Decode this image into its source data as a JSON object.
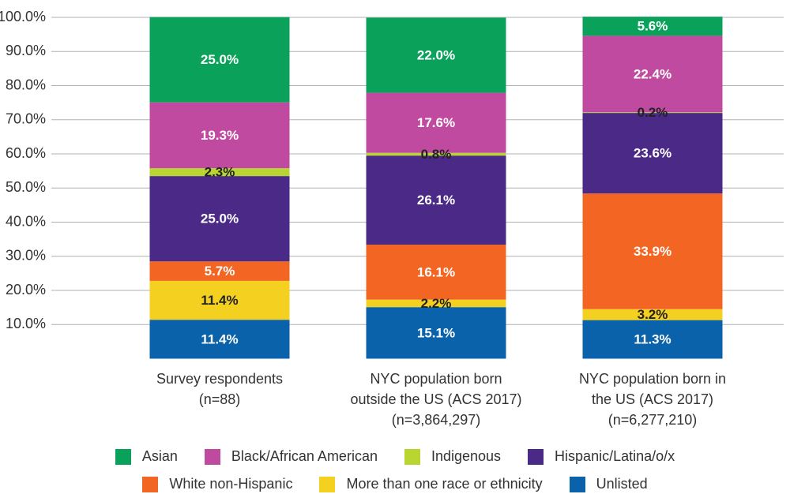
{
  "chart_data": {
    "type": "stacked_bar",
    "categories": [
      "Survey respondents\n(n=88)",
      "NYC population born\noutside the US (ACS 2017)\n(n=3,864,297)",
      "NYC population born in\nthe US (ACS 2017)\n(n=6,277,210)"
    ],
    "series": [
      {
        "name": "Unlisted",
        "color": "#0a62ab",
        "values": [
          11.4,
          15.1,
          11.3
        ],
        "value_labels": [
          "11.4%",
          "15.1%",
          "11.3%"
        ]
      },
      {
        "name": "More than one race or ethnicity",
        "color": "#f4d020",
        "values": [
          11.4,
          2.2,
          3.2
        ],
        "value_labels": [
          "11.4%",
          "2.2%",
          "3.2%"
        ]
      },
      {
        "name": "White non-Hispanic",
        "color": "#f26522",
        "values": [
          5.7,
          16.1,
          33.9
        ],
        "value_labels": [
          "5.7%",
          "16.1%",
          "33.9%"
        ]
      },
      {
        "name": "Hispanic/Latina/o/x",
        "color": "#4b2a87",
        "values": [
          25.0,
          26.1,
          23.6
        ],
        "value_labels": [
          "25.0%",
          "26.1%",
          "23.6%"
        ]
      },
      {
        "name": "Indigenous",
        "color": "#b9d531",
        "values": [
          2.3,
          0.8,
          0.2
        ],
        "value_labels": [
          "2.3%",
          "0.8%",
          "0.2%"
        ]
      },
      {
        "name": "Black/African American",
        "color": "#c04a9f",
        "values": [
          19.3,
          17.6,
          22.4
        ],
        "value_labels": [
          "19.3%",
          "17.6%",
          "22.4%"
        ]
      },
      {
        "name": "Asian",
        "color": "#0aa25a",
        "values": [
          25.0,
          22.0,
          5.6
        ],
        "value_labels": [
          "25.0%",
          "22.0%",
          "5.6%"
        ]
      }
    ],
    "legend_order": [
      6,
      5,
      4,
      3,
      2,
      1,
      0
    ],
    "ylim": [
      0,
      100
    ],
    "yticks": [
      {
        "value": 10,
        "label": "10.0%"
      },
      {
        "value": 20,
        "label": "20.0%"
      },
      {
        "value": 30,
        "label": "30.0%"
      },
      {
        "value": 40,
        "label": "40.0%"
      },
      {
        "value": 50,
        "label": "50.0%"
      },
      {
        "value": 60,
        "label": "60.0%"
      },
      {
        "value": 70,
        "label": "70.0%"
      },
      {
        "value": 80,
        "label": "80.0%"
      },
      {
        "value": 90,
        "label": "90.0%"
      },
      {
        "value": 100,
        "label": "100.0%"
      }
    ],
    "grid": true
  }
}
